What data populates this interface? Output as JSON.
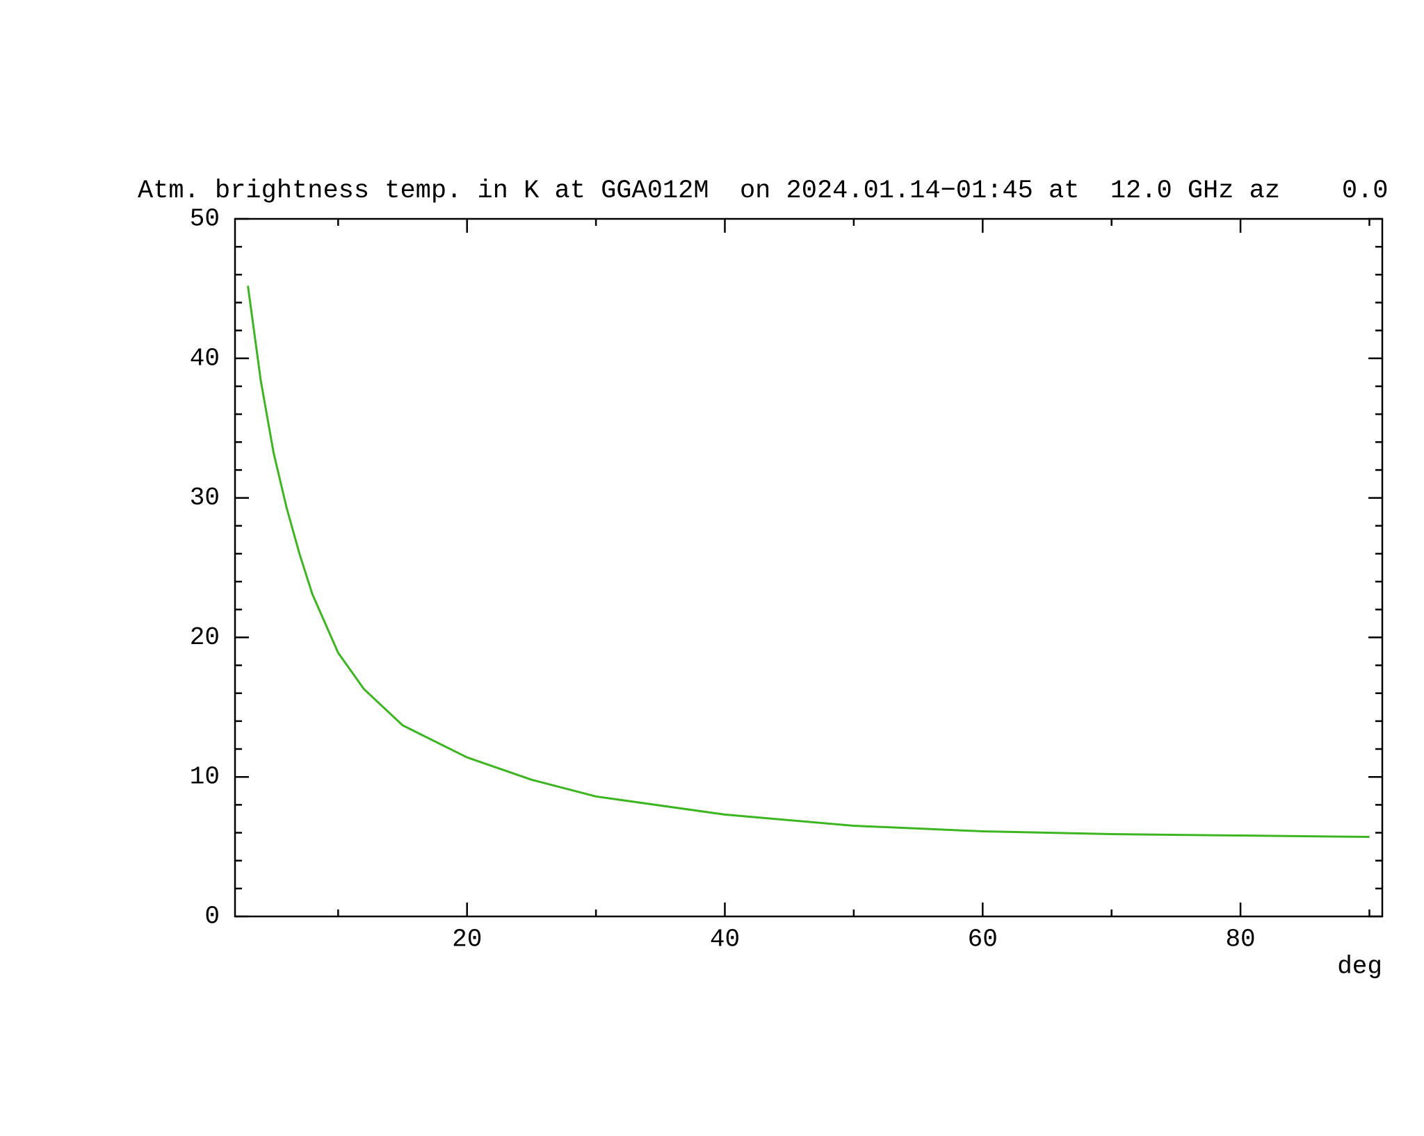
{
  "chart_data": {
    "type": "line",
    "title": "Atm. brightness temp. in K at GGA012M  on 2024.01.14−01:45 at  12.0 GHz az    0.0",
    "x_label": "deg",
    "x": [
      3,
      4,
      5,
      6,
      7,
      8,
      10,
      12,
      15,
      20,
      25,
      30,
      40,
      50,
      60,
      70,
      80,
      90
    ],
    "series": [
      {
        "color": "#3cb521",
        "values": [
          45.2,
          38.4,
          33.2,
          29.3,
          26.0,
          23.1,
          18.9,
          16.3,
          13.7,
          11.4,
          9.8,
          8.6,
          7.3,
          6.5,
          6.1,
          5.9,
          5.8,
          5.7
        ]
      }
    ],
    "xlim": [
      2,
      91
    ],
    "xticks": [
      20,
      40,
      60,
      80
    ],
    "xminorticks": [
      10,
      30,
      50,
      70,
      90
    ],
    "ylim": [
      0,
      50
    ],
    "yticks": [
      0,
      10,
      20,
      30,
      40,
      50
    ],
    "yminorticks": [
      2,
      4,
      6,
      8,
      12,
      14,
      16,
      18,
      22,
      24,
      26,
      28,
      32,
      34,
      36,
      38,
      42,
      44,
      46,
      48
    ]
  }
}
